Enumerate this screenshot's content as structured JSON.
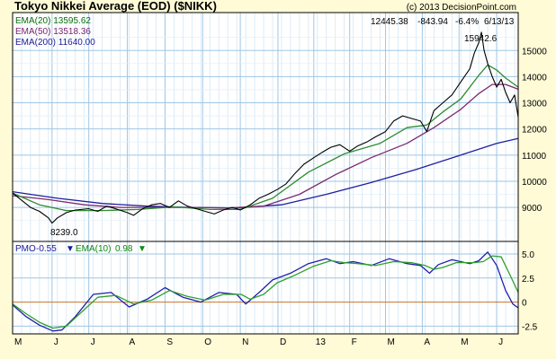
{
  "chart_data": {
    "type": "line",
    "title": "Tokyo Nikkei Average (EOD) ($NIKK)",
    "copyright": "(c) 2013 DecisionPoint.com",
    "quote": {
      "last": "12445.38",
      "change": "-843.94",
      "pct": "-6.4%",
      "date": "6/13/13"
    },
    "legend": {
      "ema20": "EMA(20) 13595.62",
      "ema50": "EMA(50) 13518.36",
      "ema200": "EMA(200) 11640.00"
    },
    "annotations": {
      "high_label": "15942.6",
      "low_label": "8239.0"
    },
    "price_axis": {
      "ylim": [
        7700,
        16450
      ],
      "ticks": [
        "9000",
        "10000",
        "11000",
        "12000",
        "13000",
        "14000",
        "15000"
      ]
    },
    "pmo_panel": {
      "pmo_label": "PMO",
      "pmo_value": "-0.55",
      "pmo_arrow": "▼",
      "ema_label": "EMA(10)",
      "ema_value": "0.98",
      "ema_arrow": "▼",
      "ylim": [
        -3.3,
        6.3
      ],
      "ticks": [
        "5.0",
        "2.5",
        "0",
        "-2.5"
      ]
    },
    "x_axis": {
      "months": [
        "M",
        "J",
        "J",
        "A",
        "S",
        "O",
        "N",
        "D",
        "13",
        "F",
        "M",
        "A",
        "M",
        "J"
      ],
      "month_index": [
        0,
        44,
        85,
        128,
        170,
        212,
        254,
        296,
        336,
        376,
        416,
        457,
        498,
        540
      ],
      "n_days": 565
    },
    "series": [
      {
        "name": "Price",
        "color": "#000000",
        "x": [
          0,
          20,
          30,
          40,
          44,
          50,
          60,
          70,
          85,
          95,
          105,
          115,
          128,
          135,
          145,
          155,
          165,
          175,
          185,
          195,
          205,
          215,
          225,
          235,
          245,
          254,
          265,
          275,
          285,
          296,
          305,
          315,
          325,
          336,
          345,
          355,
          365,
          376,
          385,
          395,
          405,
          416,
          425,
          435,
          445,
          455,
          462,
          470,
          480,
          490,
          500,
          510,
          515,
          520,
          523,
          526,
          530,
          535,
          540,
          545,
          550,
          555,
          560,
          564
        ],
        "values": [
          9550,
          9000,
          8850,
          8600,
          8400,
          8600,
          8800,
          8900,
          8950,
          8850,
          9050,
          8950,
          8800,
          8700,
          8950,
          9100,
          9150,
          9000,
          9250,
          9050,
          8950,
          8850,
          8750,
          8900,
          9000,
          8900,
          9100,
          9350,
          9500,
          9700,
          9900,
          10300,
          10650,
          10900,
          11100,
          11300,
          11400,
          11150,
          11350,
          11500,
          11700,
          11900,
          12300,
          12500,
          12400,
          12300,
          11900,
          12700,
          13000,
          13300,
          13800,
          14300,
          14900,
          15300,
          15700,
          15000,
          14500,
          14000,
          13600,
          13900,
          13400,
          13000,
          13300,
          12445
        ]
      },
      {
        "name": "EMA(20)",
        "color": "#2e8b2e",
        "x": [
          0,
          30,
          60,
          100,
          140,
          180,
          220,
          254,
          290,
          330,
          370,
          410,
          440,
          462,
          480,
          500,
          520,
          530,
          540,
          550,
          564
        ],
        "values": [
          9550,
          9100,
          8880,
          8880,
          8920,
          9020,
          8920,
          8920,
          9350,
          10350,
          11050,
          11450,
          12050,
          12150,
          12650,
          13150,
          14050,
          14450,
          14250,
          13950,
          13600
        ]
      },
      {
        "name": "EMA(50)",
        "color": "#7a2a6e",
        "x": [
          0,
          40,
          80,
          120,
          160,
          200,
          240,
          280,
          320,
          360,
          400,
          440,
          470,
          500,
          520,
          535,
          550,
          564
        ],
        "values": [
          9450,
          9300,
          9100,
          9000,
          9000,
          9000,
          8980,
          9050,
          9500,
          10250,
          10900,
          11450,
          12050,
          12750,
          13350,
          13700,
          13700,
          13518
        ]
      },
      {
        "name": "EMA(200)",
        "color": "#1f1f9e",
        "x": [
          0,
          50,
          100,
          150,
          200,
          250,
          300,
          350,
          400,
          450,
          500,
          540,
          564
        ],
        "values": [
          9600,
          9350,
          9150,
          9050,
          9000,
          8980,
          9100,
          9500,
          9950,
          10450,
          11000,
          11450,
          11640
        ]
      }
    ],
    "pmo_series": [
      {
        "name": "PMO",
        "color": "#1f1fae",
        "x": [
          0,
          15,
          30,
          45,
          55,
          70,
          90,
          110,
          130,
          150,
          170,
          190,
          210,
          230,
          250,
          260,
          275,
          290,
          310,
          330,
          350,
          365,
          380,
          400,
          420,
          440,
          455,
          465,
          475,
          490,
          510,
          520,
          530,
          540,
          550,
          558,
          564
        ],
        "values": [
          -0.3,
          -1.5,
          -2.4,
          -3.0,
          -2.9,
          -1.5,
          0.8,
          1.0,
          -0.5,
          0.3,
          1.5,
          0.5,
          0.0,
          1.0,
          0.8,
          -0.2,
          1.0,
          2.3,
          3.0,
          4.0,
          4.5,
          4.0,
          4.2,
          3.8,
          4.5,
          4.0,
          3.8,
          3.0,
          3.9,
          4.4,
          4.0,
          4.3,
          5.2,
          3.8,
          1.2,
          -0.2,
          -0.6
        ]
      },
      {
        "name": "EMA(10)",
        "color": "#2ea02e",
        "x": [
          0,
          15,
          30,
          45,
          60,
          75,
          95,
          115,
          135,
          155,
          175,
          195,
          215,
          235,
          255,
          265,
          280,
          295,
          315,
          335,
          355,
          370,
          385,
          405,
          425,
          445,
          460,
          470,
          480,
          495,
          515,
          525,
          535,
          545,
          555,
          564
        ],
        "values": [
          -0.2,
          -1.2,
          -2.1,
          -2.7,
          -2.5,
          -1.2,
          0.5,
          0.7,
          -0.2,
          0.2,
          1.2,
          0.6,
          0.2,
          0.8,
          0.8,
          0.3,
          0.8,
          2.0,
          2.8,
          3.7,
          4.3,
          4.1,
          4.0,
          3.8,
          4.2,
          4.1,
          3.8,
          3.4,
          3.6,
          4.1,
          4.1,
          4.2,
          4.8,
          4.7,
          2.8,
          1.0
        ]
      }
    ]
  }
}
